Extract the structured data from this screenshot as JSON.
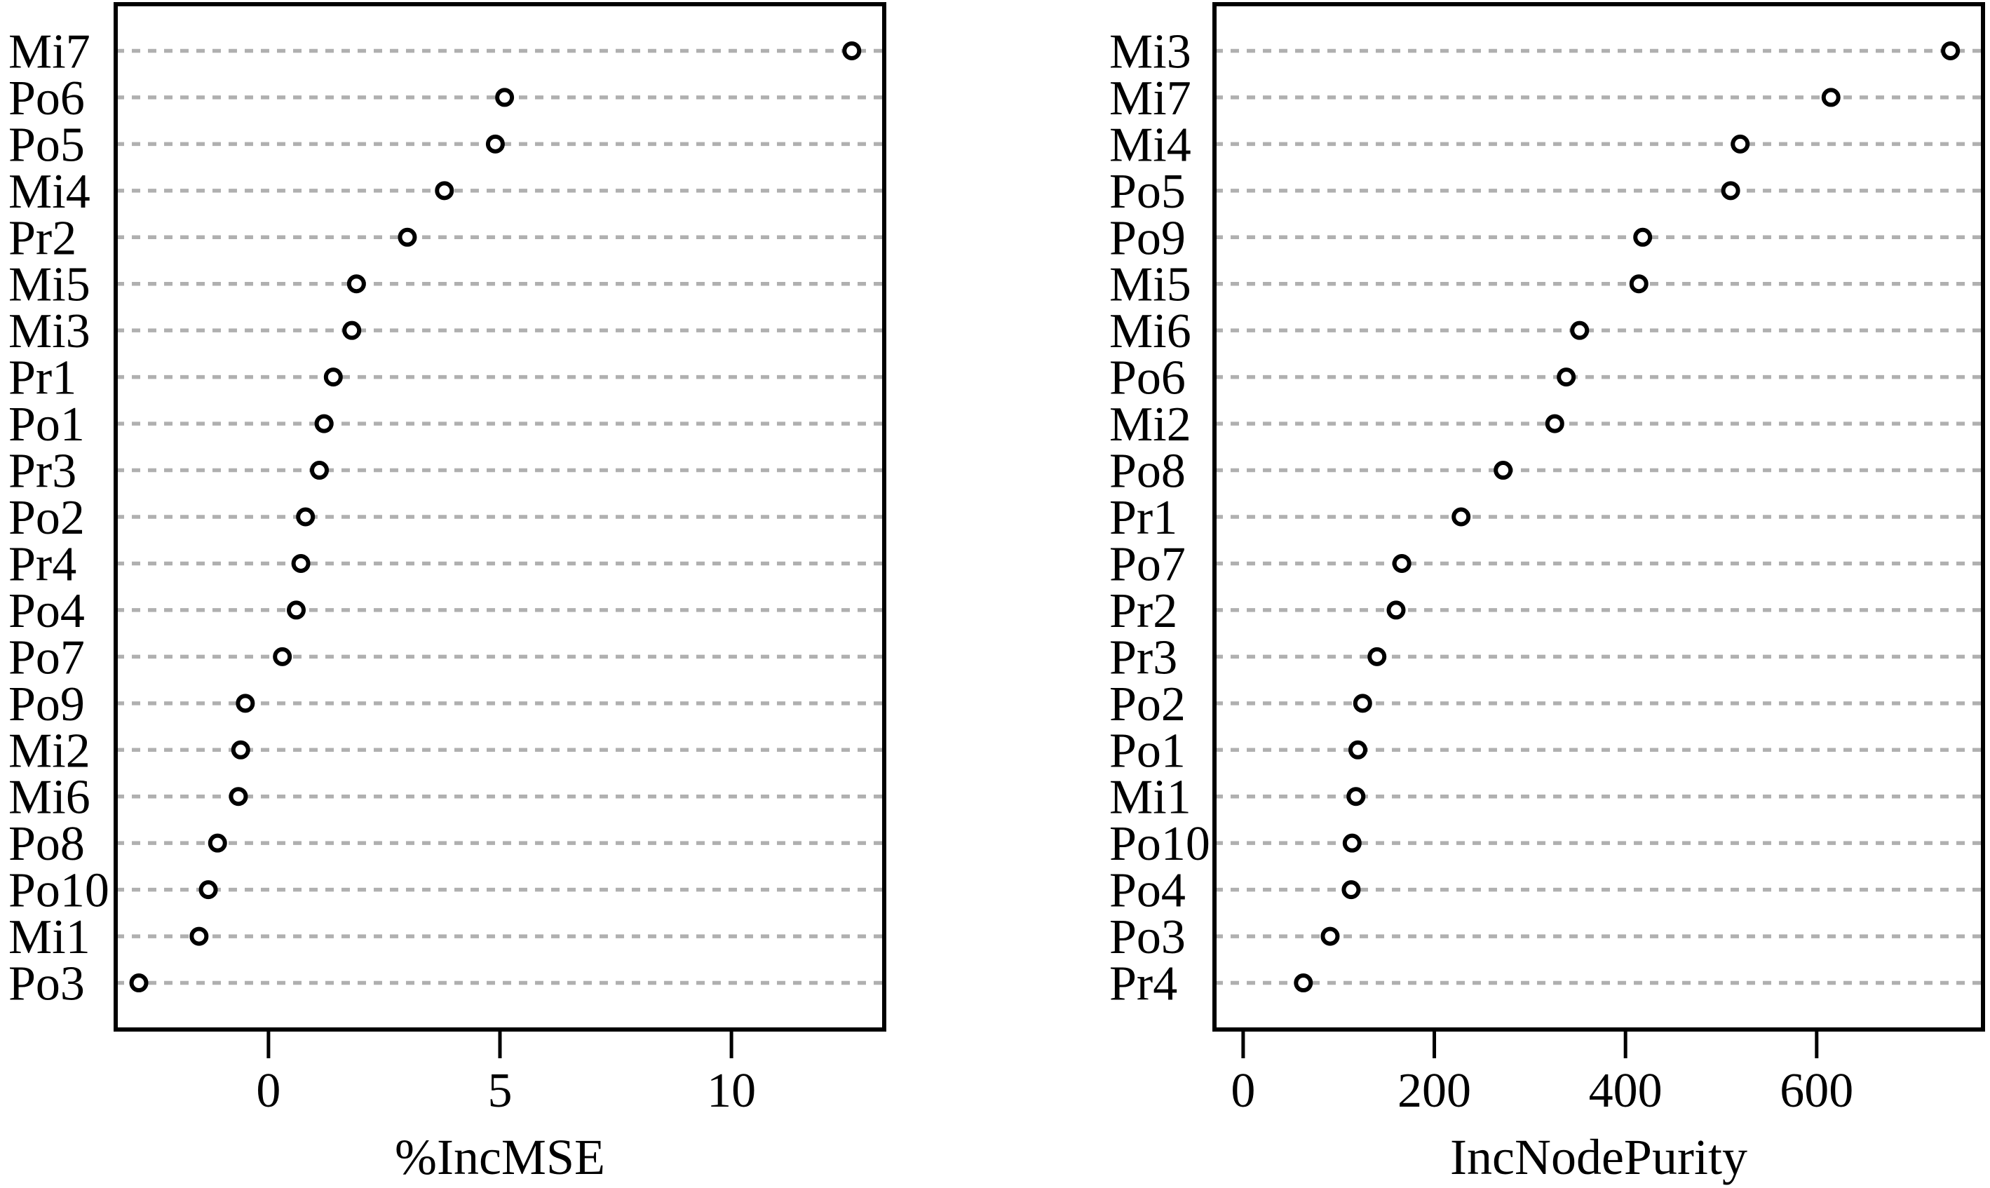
{
  "figure": {
    "background": "#ffffff",
    "colors": {
      "axis": "#000000",
      "grid": "#b0b0b0",
      "point_stroke": "#000000",
      "point_fill": "#ffffff",
      "text": "#000000"
    }
  },
  "chart_data": [
    {
      "type": "scatter",
      "variant": "dotchart",
      "title": "",
      "xlabel": "%IncMSE",
      "ylabel": "",
      "grid": "horizontal-dashed",
      "legend": null,
      "xlim": [
        -3.3,
        13.3
      ],
      "xticks": [
        0,
        5,
        10
      ],
      "categories": [
        "Mi7",
        "Po6",
        "Po5",
        "Mi4",
        "Pr2",
        "Mi5",
        "Mi3",
        "Pr1",
        "Po1",
        "Pr3",
        "Po2",
        "Pr4",
        "Po4",
        "Po7",
        "Po9",
        "Mi2",
        "Mi6",
        "Po8",
        "Po10",
        "Mi1",
        "Po3"
      ],
      "values": [
        12.6,
        5.1,
        4.9,
        3.8,
        3.0,
        1.9,
        1.8,
        1.4,
        1.2,
        1.1,
        0.8,
        0.7,
        0.6,
        0.3,
        -0.5,
        -0.6,
        -0.65,
        -1.1,
        -1.3,
        -1.5,
        -2.8
      ]
    },
    {
      "type": "scatter",
      "variant": "dotchart",
      "title": "",
      "xlabel": "IncNodePurity",
      "ylabel": "",
      "grid": "horizontal-dashed",
      "legend": null,
      "xlim": [
        -30,
        774
      ],
      "xticks": [
        0,
        200,
        400,
        600
      ],
      "categories": [
        "Mi3",
        "Mi7",
        "Mi4",
        "Po5",
        "Po9",
        "Mi5",
        "Mi6",
        "Po6",
        "Mi2",
        "Po8",
        "Pr1",
        "Po7",
        "Pr2",
        "Pr3",
        "Po2",
        "Po1",
        "Mi1",
        "Po10",
        "Po4",
        "Po3",
        "Pr4"
      ],
      "values": [
        740,
        615,
        520,
        510,
        418,
        414,
        352,
        338,
        326,
        272,
        228,
        166,
        160,
        140,
        125,
        120,
        118,
        114,
        113,
        91,
        63
      ]
    }
  ]
}
